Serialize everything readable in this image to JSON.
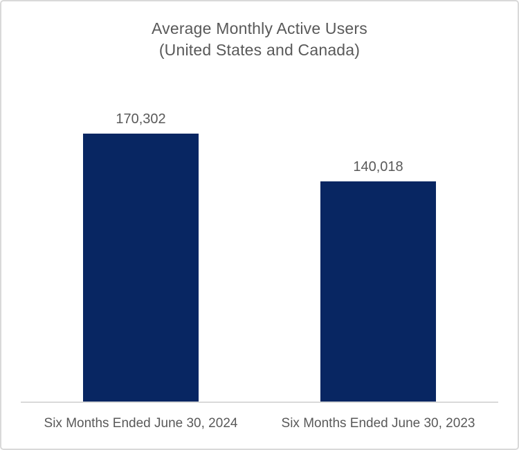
{
  "chart_data": {
    "type": "bar",
    "title": "Average Monthly Active Users\n(United States and Canada)",
    "categories": [
      "Six Months Ended June 30, 2024",
      "Six Months Ended June 30, 2023"
    ],
    "values": [
      170302,
      140018
    ],
    "value_labels": [
      "170,302",
      "140,018"
    ],
    "xlabel": "",
    "ylabel": "",
    "ylim": [
      0,
      170302
    ],
    "grid": false,
    "legend": false,
    "colors": {
      "bar": "#082662",
      "text": "#595959",
      "axis_line": "#d9d9d9",
      "frame_border": "#d9d9d9",
      "background": "#ffffff"
    }
  }
}
